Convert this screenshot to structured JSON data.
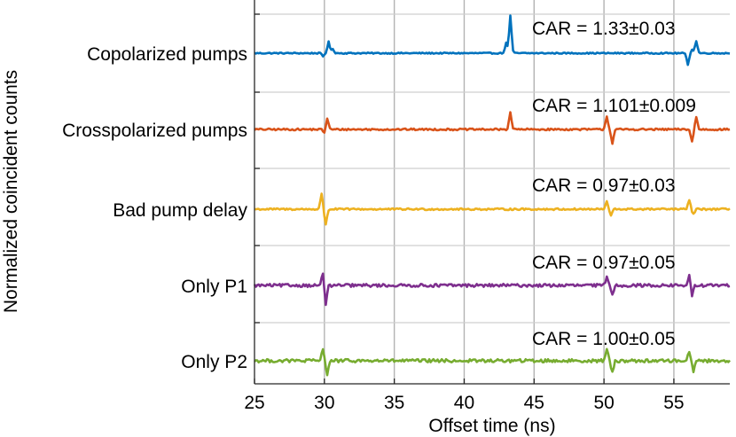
{
  "chart_data": {
    "type": "line",
    "title": "",
    "xlabel": "Offset time (ns)",
    "ylabel": "Normalized coincident counts",
    "xlim": [
      25,
      59
    ],
    "xticks": [
      25,
      30,
      35,
      40,
      45,
      50,
      55
    ],
    "x_tick_labels": [
      "25",
      "30",
      "35",
      "40",
      "45",
      "50",
      "55"
    ],
    "grid": true,
    "series": [
      {
        "name": "Copolarized pumps",
        "car_label": "CAR = 1.33±0.03",
        "color": "#0072BD",
        "baseline": 1.0,
        "noise": 0.05,
        "features": [
          [
            30.3,
            0.9
          ],
          [
            30.6,
            0.35
          ],
          [
            29.9,
            -0.25
          ],
          [
            43.3,
            3.0
          ],
          [
            43.0,
            0.8
          ],
          [
            56.6,
            1.0
          ],
          [
            56.3,
            0.3
          ],
          [
            56.0,
            -0.9
          ]
        ]
      },
      {
        "name": "Crosspolarized pumps",
        "car_label": "CAR = 1.101±0.009",
        "color": "#D95319",
        "baseline": 1.0,
        "noise": 0.07,
        "features": [
          [
            30.2,
            0.9
          ],
          [
            30.0,
            -0.3
          ],
          [
            43.3,
            1.4
          ],
          [
            50.2,
            1.1
          ],
          [
            50.6,
            -1.1
          ],
          [
            56.3,
            -1.0
          ],
          [
            56.6,
            1.0
          ]
        ]
      },
      {
        "name": "Bad pump delay",
        "car_label": "CAR = 0.97±0.03",
        "color": "#EDB120",
        "baseline": 1.0,
        "noise": 0.07,
        "features": [
          [
            29.8,
            1.2
          ],
          [
            30.1,
            -1.2
          ],
          [
            50.2,
            0.6
          ],
          [
            50.5,
            -0.5
          ],
          [
            56.1,
            0.7
          ],
          [
            56.4,
            -0.4
          ]
        ]
      },
      {
        "name": "Only P1",
        "car_label": "CAR = 0.97±0.05",
        "color": "#7E2F8E",
        "baseline": 1.0,
        "noise": 0.12,
        "features": [
          [
            29.9,
            1.1
          ],
          [
            30.1,
            -1.6
          ],
          [
            50.2,
            0.7
          ],
          [
            50.6,
            -0.7
          ],
          [
            56.1,
            0.8
          ],
          [
            56.3,
            -0.9
          ]
        ]
      },
      {
        "name": "Only P2",
        "car_label": "CAR = 1.00±0.05",
        "color": "#77AC30",
        "baseline": 1.0,
        "noise": 0.13,
        "features": [
          [
            29.9,
            1.0
          ],
          [
            30.2,
            -1.1
          ],
          [
            50.2,
            1.0
          ],
          [
            50.6,
            -1.0
          ],
          [
            56.1,
            0.8
          ],
          [
            56.4,
            -0.8
          ]
        ]
      }
    ]
  }
}
